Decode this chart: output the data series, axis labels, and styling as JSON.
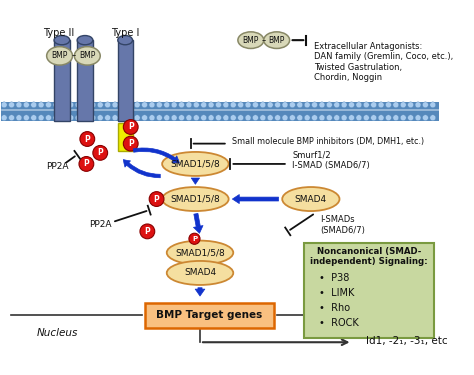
{
  "bg_color": "#ffffff",
  "receptor_color": "#6677aa",
  "receptor_border": "#334466",
  "receptor_highlight": "#eeee00",
  "receptor_highlight_border": "#aaaa00",
  "bmp_ligand_color": "#d8d8b8",
  "bmp_ligand_border": "#888866",
  "membrane_color": "#5588bb",
  "membrane_dot_color": "#88aacc",
  "membrane_line_color": "#ccddee",
  "smad_color": "#f5dfa0",
  "smad_border": "#cc8833",
  "p_circle_color": "#dd1111",
  "p_circle_border": "#880000",
  "arrow_blue": "#1133cc",
  "inhibit_color": "#111111",
  "target_box_fill": "#f8c080",
  "target_box_border": "#dd6600",
  "noncanon_box_fill": "#c8d8a0",
  "noncanon_box_border": "#7a9a40",
  "text_color": "#111111",
  "extracellular_text": "Extracellular Antagonists:\nDAN family (Gremlin, Coco, etc.),\nTwisted Gastrulation,\nChordin, Noggin",
  "small_molecule_text": "Small molecule BMP inhibitors (DM, DMH1, etc.)",
  "smurf_text": "Smurf1/2\nI-SMAD (SMAD6/7)",
  "ismads_text": "I-SMADs\n(SMAD6/7)",
  "pp2a_text": "PP2A",
  "noncanon_title": "Noncanonical (SMAD-\nindependent) Signaling:",
  "noncanon_items": [
    "P38",
    "LIMK",
    "Rho",
    "ROCK"
  ],
  "nucleus_text": "Nucleus",
  "target_gene_text": "BMP Target genes",
  "id_text": "Id1, -2₁, -3₁, etc",
  "type2_text": "Type II",
  "type1_text": "Type I",
  "bmp_label_left": "BMP",
  "bmp_dash": "–",
  "bmp_label_right": "BMP"
}
